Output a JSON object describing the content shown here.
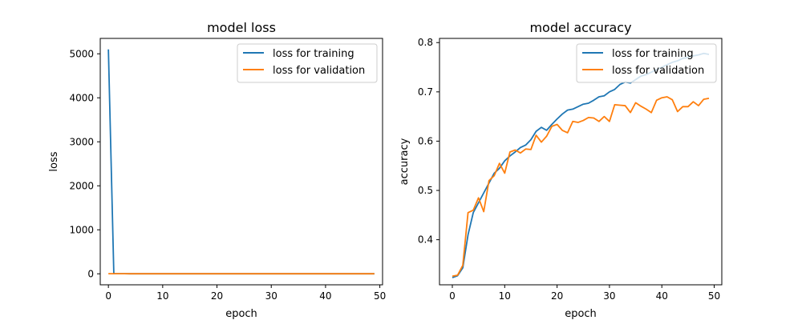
{
  "chart_data": [
    {
      "type": "line",
      "title": "model loss",
      "xlabel": "epoch",
      "ylabel": "loss",
      "xlim": [
        -1.5,
        50.5
      ],
      "ylim": [
        -250,
        5350
      ],
      "xticks": [
        0,
        10,
        20,
        30,
        40,
        50
      ],
      "yticks": [
        0,
        1000,
        2000,
        3000,
        4000,
        5000
      ],
      "grid": false,
      "legend_position": "top-right",
      "series": [
        {
          "name": "loss for training",
          "color": "#1f77b4",
          "x": [
            0,
            1,
            2,
            3,
            4,
            5,
            6,
            7,
            8,
            9,
            10,
            11,
            12,
            13,
            14,
            15,
            16,
            17,
            18,
            19,
            20,
            21,
            22,
            23,
            24,
            25,
            26,
            27,
            28,
            29,
            30,
            31,
            32,
            33,
            34,
            35,
            36,
            37,
            38,
            39,
            40,
            41,
            42,
            43,
            44,
            45,
            46,
            47,
            48,
            49
          ],
          "values": [
            5100,
            2.0,
            1.8,
            1.6,
            1.5,
            1.45,
            1.4,
            1.35,
            1.3,
            1.25,
            1.2,
            1.18,
            1.15,
            1.13,
            1.1,
            1.08,
            1.06,
            1.04,
            1.02,
            1.0,
            0.98,
            0.97,
            0.96,
            0.95,
            0.94,
            0.93,
            0.92,
            0.91,
            0.9,
            0.89,
            0.88,
            0.87,
            0.86,
            0.85,
            0.84,
            0.83,
            0.82,
            0.81,
            0.8,
            0.79,
            0.78,
            0.77,
            0.76,
            0.75,
            0.74,
            0.73,
            0.72,
            0.71,
            0.7,
            0.69
          ]
        },
        {
          "name": "loss for validation",
          "color": "#ff7f0e",
          "x": [
            0,
            1,
            2,
            3,
            4,
            5,
            6,
            7,
            8,
            9,
            10,
            11,
            12,
            13,
            14,
            15,
            16,
            17,
            18,
            19,
            20,
            21,
            22,
            23,
            24,
            25,
            26,
            27,
            28,
            29,
            30,
            31,
            32,
            33,
            34,
            35,
            36,
            37,
            38,
            39,
            40,
            41,
            42,
            43,
            44,
            45,
            46,
            47,
            48,
            49
          ],
          "values": [
            2.0,
            1.9,
            1.8,
            1.6,
            1.5,
            1.45,
            1.5,
            1.4,
            1.35,
            1.3,
            1.3,
            1.25,
            1.2,
            1.2,
            1.18,
            1.15,
            1.15,
            1.12,
            1.1,
            1.1,
            1.08,
            1.08,
            1.06,
            1.06,
            1.05,
            1.05,
            1.04,
            1.04,
            1.03,
            1.03,
            1.02,
            1.02,
            1.01,
            1.01,
            1.0,
            1.0,
            1.0,
            1.0,
            1.0,
            1.0,
            1.0,
            1.0,
            1.0,
            1.0,
            1.0,
            1.0,
            1.0,
            1.0,
            1.0,
            1.0
          ]
        }
      ]
    },
    {
      "type": "line",
      "title": "model accuracy",
      "xlabel": "epoch",
      "ylabel": "accuracy",
      "xlim": [
        -2.45,
        51.45
      ],
      "ylim": [
        0.3085,
        0.8085
      ],
      "xticks": [
        0,
        10,
        20,
        30,
        40,
        50
      ],
      "yticks": [
        0.4,
        0.5,
        0.6,
        0.7,
        0.8
      ],
      "grid": false,
      "legend_position": "top-right",
      "series": [
        {
          "name": "loss for training",
          "color": "#1f77b4",
          "x": [
            0,
            1,
            2,
            3,
            4,
            5,
            6,
            7,
            8,
            9,
            10,
            11,
            12,
            13,
            14,
            15,
            16,
            17,
            18,
            19,
            20,
            21,
            22,
            23,
            24,
            25,
            26,
            27,
            28,
            29,
            30,
            31,
            32,
            33,
            34,
            35,
            36,
            37,
            38,
            39,
            40,
            41,
            42,
            43,
            44,
            45,
            46,
            47,
            48,
            49
          ],
          "values": [
            0.323,
            0.327,
            0.343,
            0.41,
            0.455,
            0.475,
            0.495,
            0.515,
            0.535,
            0.545,
            0.56,
            0.57,
            0.578,
            0.587,
            0.592,
            0.603,
            0.62,
            0.628,
            0.622,
            0.634,
            0.645,
            0.655,
            0.663,
            0.665,
            0.67,
            0.675,
            0.677,
            0.683,
            0.69,
            0.692,
            0.7,
            0.705,
            0.715,
            0.72,
            0.718,
            0.725,
            0.732,
            0.735,
            0.74,
            0.745,
            0.75,
            0.755,
            0.76,
            0.763,
            0.768,
            0.77,
            0.773,
            0.775,
            0.778,
            0.776
          ]
        },
        {
          "name": "loss for validation",
          "color": "#ff7f0e",
          "x": [
            0,
            1,
            2,
            3,
            4,
            5,
            6,
            7,
            8,
            9,
            10,
            11,
            12,
            13,
            14,
            15,
            16,
            17,
            18,
            19,
            20,
            21,
            22,
            23,
            24,
            25,
            26,
            27,
            28,
            29,
            30,
            31,
            32,
            33,
            34,
            35,
            36,
            37,
            38,
            39,
            40,
            41,
            42,
            43,
            44,
            45,
            46,
            47,
            48,
            49
          ],
          "values": [
            0.326,
            0.328,
            0.348,
            0.455,
            0.46,
            0.485,
            0.457,
            0.52,
            0.53,
            0.555,
            0.535,
            0.578,
            0.582,
            0.576,
            0.584,
            0.583,
            0.612,
            0.598,
            0.61,
            0.63,
            0.634,
            0.622,
            0.617,
            0.64,
            0.638,
            0.642,
            0.648,
            0.647,
            0.64,
            0.65,
            0.64,
            0.674,
            0.673,
            0.672,
            0.658,
            0.678,
            0.671,
            0.665,
            0.658,
            0.683,
            0.688,
            0.69,
            0.684,
            0.66,
            0.67,
            0.67,
            0.68,
            0.672,
            0.685,
            0.687
          ]
        }
      ]
    }
  ]
}
